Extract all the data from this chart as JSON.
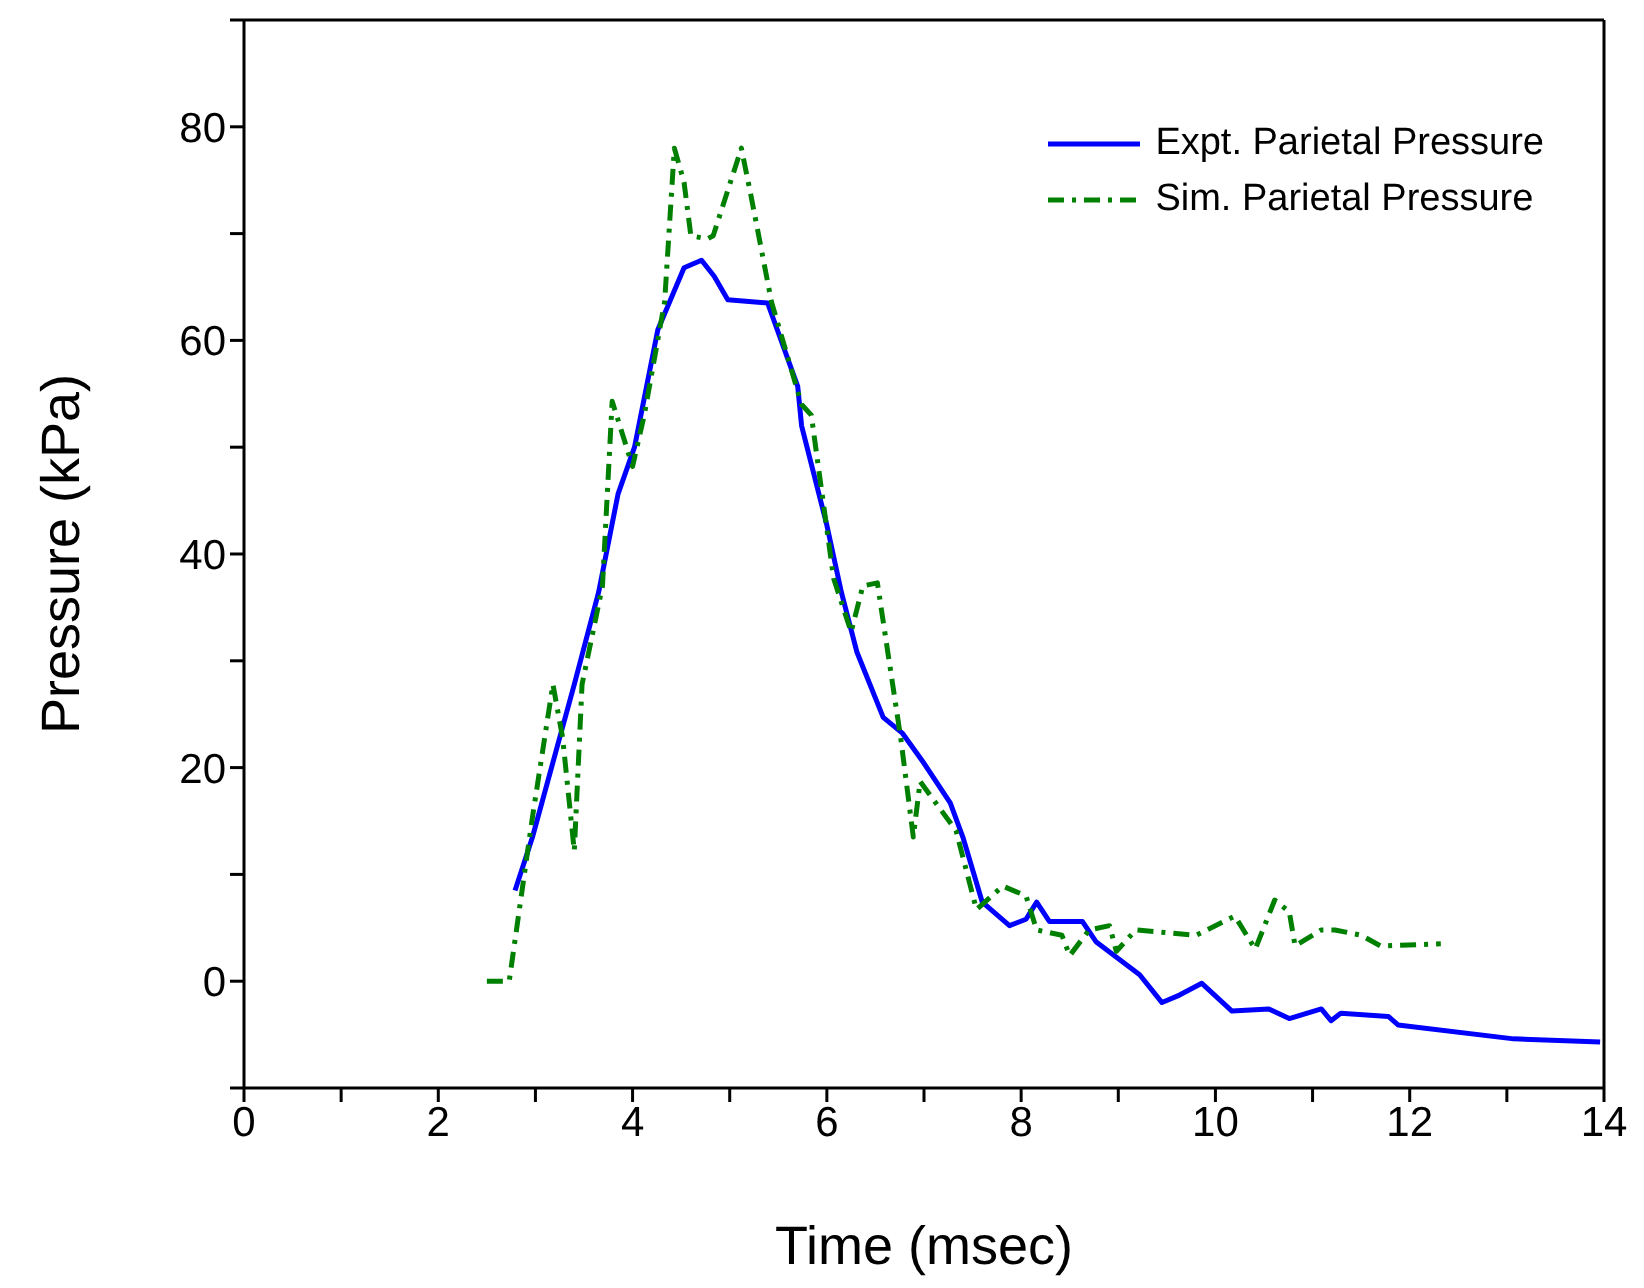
{
  "chart_data": {
    "type": "line",
    "xlabel": "Time (msec)",
    "ylabel": "Pressure (kPa)",
    "xlim": [
      0,
      14
    ],
    "ylim": [
      -10,
      90
    ],
    "xticks": [
      0,
      {
        "value": 1,
        "label": null
      },
      2,
      {
        "value": 3,
        "label": null
      },
      4,
      {
        "value": 5,
        "label": null
      },
      6,
      {
        "value": 7,
        "label": null
      },
      8,
      {
        "value": 9,
        "label": null
      },
      10,
      {
        "value": 11,
        "label": null
      },
      12,
      {
        "value": 13,
        "label": null
      },
      14
    ],
    "yticks": [
      {
        "value": -10,
        "label": null
      },
      0,
      {
        "value": 10,
        "label": null
      },
      20,
      {
        "value": 30,
        "label": null
      },
      40,
      {
        "value": 50,
        "label": null
      },
      60,
      {
        "value": 70,
        "label": null
      },
      80,
      {
        "value": 90,
        "label": null
      }
    ],
    "legend": "top right",
    "marker": "none",
    "series": [
      {
        "name": "Expt. Parietal Pressure",
        "color": "#0000ff",
        "line_style": "solid",
        "x": [
          2.79,
          2.97,
          3.4,
          3.65,
          3.85,
          4.02,
          4.26,
          4.53,
          4.71,
          4.84,
          4.98,
          5.39,
          5.7,
          5.74,
          6.0,
          6.15,
          6.31,
          6.58,
          6.78,
          7.0,
          7.27,
          7.4,
          7.6,
          7.88,
          8.05,
          8.16,
          8.29,
          8.63,
          8.77,
          9.22,
          9.45,
          9.63,
          9.86,
          10.17,
          10.55,
          10.76,
          11.09,
          11.19,
          11.29,
          11.78,
          11.88,
          13.07,
          13.96
        ],
        "values": [
          8.5,
          13.5,
          27.8,
          36.4,
          45.6,
          50,
          61,
          66.8,
          67.5,
          66,
          63.8,
          63.5,
          55.7,
          52,
          42.7,
          36.4,
          30.8,
          24.7,
          23.2,
          20.4,
          16.7,
          13.5,
          7.4,
          5.2,
          5.8,
          7.4,
          5.6,
          5.6,
          3.7,
          0.6,
          -2,
          -1.3,
          -0.2,
          -2.8,
          -2.6,
          -3.5,
          -2.6,
          -3.7,
          -3,
          -3.3,
          -4.1,
          -5.4,
          -5.7
        ]
      },
      {
        "name": "Sim. Parietal Pressure",
        "color": "#008000",
        "line_style": "dashed",
        "x": [
          2.5,
          2.73,
          2.97,
          3.18,
          3.28,
          3.4,
          3.48,
          3.69,
          3.79,
          4.0,
          4.12,
          4.33,
          4.43,
          4.53,
          4.6,
          4.77,
          4.83,
          5.12,
          5.22,
          5.43,
          5.74,
          5.84,
          6.07,
          6.25,
          6.37,
          6.52,
          6.76,
          6.89,
          6.96,
          7.33,
          7.54,
          7.81,
          8.05,
          8.16,
          8.42,
          8.5,
          8.7,
          8.91,
          8.98,
          9.18,
          9.8,
          10.2,
          10.41,
          10.61,
          10.76,
          10.82,
          11.09,
          11.23,
          11.5,
          11.7,
          12.32
        ],
        "values": [
          0,
          0,
          15.4,
          27.8,
          22.8,
          12.2,
          27.8,
          37,
          54.3,
          48.2,
          53,
          63.6,
          78,
          74.8,
          69.8,
          69.5,
          69.8,
          78,
          73.5,
          63.6,
          54,
          53,
          37.7,
          32.7,
          37,
          37.3,
          22.8,
          13.5,
          18.7,
          14.1,
          6.7,
          8.9,
          8,
          4.8,
          4.3,
          2.4,
          4.8,
          5.2,
          2.8,
          4.8,
          4.3,
          6.1,
          3,
          7.6,
          6.5,
          3.3,
          4.8,
          4.8,
          4.3,
          3.3,
          3.5
        ]
      }
    ]
  }
}
